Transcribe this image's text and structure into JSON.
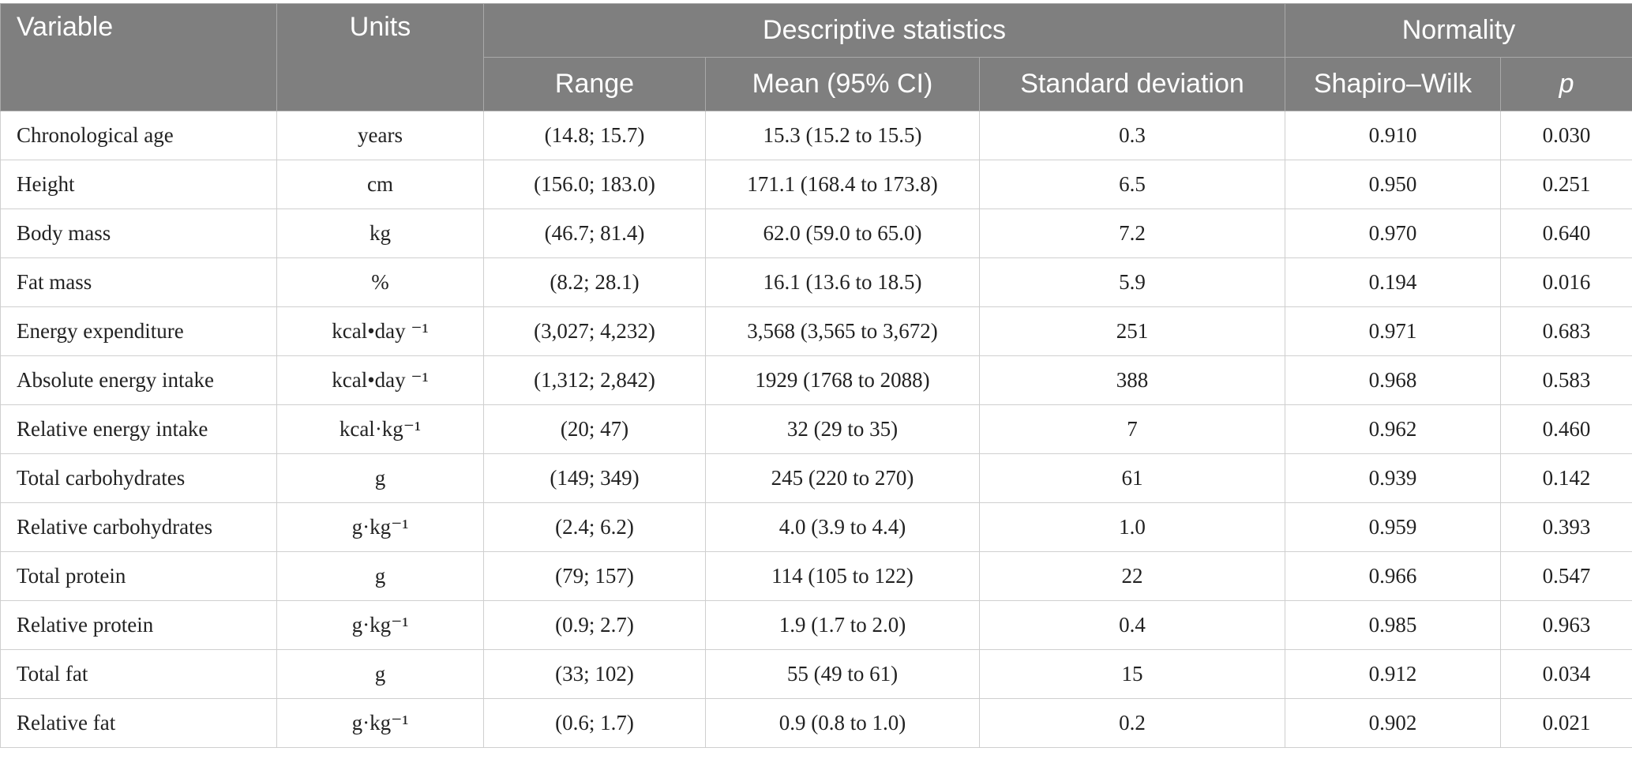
{
  "headers": {
    "variable": "Variable",
    "units": "Units",
    "descriptive": "Descriptive statistics",
    "normality": "Normality",
    "range": "Range",
    "mean": "Mean (95% CI)",
    "sd": "Standard deviation",
    "shapiro": "Shapiro–Wilk",
    "p": "p"
  },
  "rows": [
    {
      "variable": "Chronological age",
      "units": "years",
      "range": "(14.8; 15.7)",
      "mean": "15.3 (15.2 to 15.5)",
      "sd": "0.3",
      "shapiro": "0.910",
      "p": "0.030"
    },
    {
      "variable": "Height",
      "units": "cm",
      "range": "(156.0; 183.0)",
      "mean": "171.1 (168.4 to 173.8)",
      "sd": "6.5",
      "shapiro": "0.950",
      "p": "0.251"
    },
    {
      "variable": "Body mass",
      "units": "kg",
      "range": "(46.7; 81.4)",
      "mean": "62.0 (59.0 to 65.0)",
      "sd": "7.2",
      "shapiro": "0.970",
      "p": "0.640"
    },
    {
      "variable": "Fat mass",
      "units": "%",
      "range": "(8.2; 28.1)",
      "mean": "16.1 (13.6 to 18.5)",
      "sd": "5.9",
      "shapiro": "0.194",
      "p": "0.016"
    },
    {
      "variable": "Energy expenditure",
      "units": "kcal•day ⁻¹",
      "range": "(3,027; 4,232)",
      "mean": "3,568 (3,565 to 3,672)",
      "sd": "251",
      "shapiro": "0.971",
      "p": "0.683"
    },
    {
      "variable": "Absolute energy intake",
      "units": "kcal•day ⁻¹",
      "range": "(1,312; 2,842)",
      "mean": "1929 (1768 to 2088)",
      "sd": "388",
      "shapiro": "0.968",
      "p": "0.583"
    },
    {
      "variable": "Relative energy intake",
      "units": "kcal·kg⁻¹",
      "range": "(20; 47)",
      "mean": "32 (29 to 35)",
      "sd": "7",
      "shapiro": "0.962",
      "p": "0.460"
    },
    {
      "variable": "Total carbohydrates",
      "units": "g",
      "range": "(149; 349)",
      "mean": "245 (220 to 270)",
      "sd": "61",
      "shapiro": "0.939",
      "p": "0.142"
    },
    {
      "variable": "Relative carbohydrates",
      "units": "g·kg⁻¹",
      "range": "(2.4; 6.2)",
      "mean": "4.0 (3.9 to 4.4)",
      "sd": "1.0",
      "shapiro": "0.959",
      "p": "0.393"
    },
    {
      "variable": "Total protein",
      "units": "g",
      "range": "(79; 157)",
      "mean": "114 (105 to 122)",
      "sd": "22",
      "shapiro": "0.966",
      "p": "0.547"
    },
    {
      "variable": "Relative protein",
      "units": "g·kg⁻¹",
      "range": "(0.9; 2.7)",
      "mean": "1.9 (1.7 to 2.0)",
      "sd": "0.4",
      "shapiro": "0.985",
      "p": "0.963"
    },
    {
      "variable": "Total fat",
      "units": "g",
      "range": "(33; 102)",
      "mean": "55 (49 to 61)",
      "sd": "15",
      "shapiro": "0.912",
      "p": "0.034"
    },
    {
      "variable": "Relative fat",
      "units": "g·kg⁻¹",
      "range": "(0.6; 1.7)",
      "mean": "0.9 (0.8 to 1.0)",
      "sd": "0.2",
      "shapiro": "0.902",
      "p": "0.021"
    }
  ]
}
